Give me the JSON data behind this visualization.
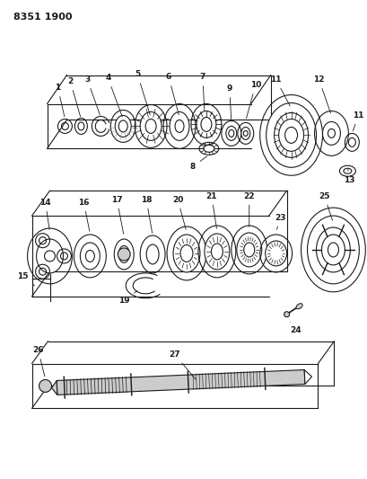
{
  "title": "8351 1900",
  "bg": "#ffffff",
  "lc": "#1a1a1a",
  "gray": "#888888",
  "lgray": "#cccccc",
  "fig_w": 4.1,
  "fig_h": 5.33,
  "dpi": 100
}
